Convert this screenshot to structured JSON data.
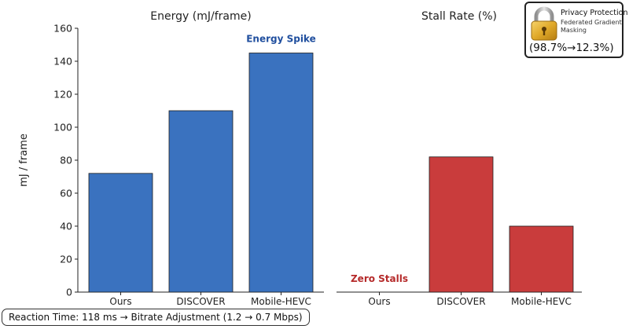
{
  "chart_data": [
    {
      "type": "bar",
      "title": "Energy (mJ/frame)",
      "xlabel": "",
      "ylabel": "mJ / frame",
      "categories": [
        "Ours",
        "DISCOVER",
        "Mobile-HEVC"
      ],
      "values": [
        72,
        110,
        145
      ],
      "ylim": [
        0,
        160
      ],
      "yticks": [
        0,
        20,
        40,
        60,
        80,
        100,
        120,
        140,
        160
      ],
      "grid": false,
      "bar_color": "#3a72bf",
      "annotation": {
        "text": "Energy Spike",
        "category": "Mobile-HEVC",
        "color": "#1f4e9e"
      }
    },
    {
      "type": "bar",
      "title": "Stall Rate (%)",
      "xlabel": "",
      "ylabel": "",
      "categories": [
        "Ours",
        "DISCOVER",
        "Mobile-HEVC"
      ],
      "values": [
        0,
        82,
        40
      ],
      "ylim": [
        0,
        160
      ],
      "grid": false,
      "bar_color": "#c93c3c",
      "annotation": {
        "text": "Zero Stalls",
        "category": "Ours",
        "color": "#b52a2a"
      }
    }
  ],
  "privacy_badge": {
    "icon": "padlock-icon",
    "title": "Privacy Protection",
    "subtitle": "Federated Gradient Masking",
    "value": "(98.7%→12.3%)"
  },
  "reaction_note": "Reaction Time: 118 ms → Bitrate Adjustment (1.2 → 0.7 Mbps)"
}
